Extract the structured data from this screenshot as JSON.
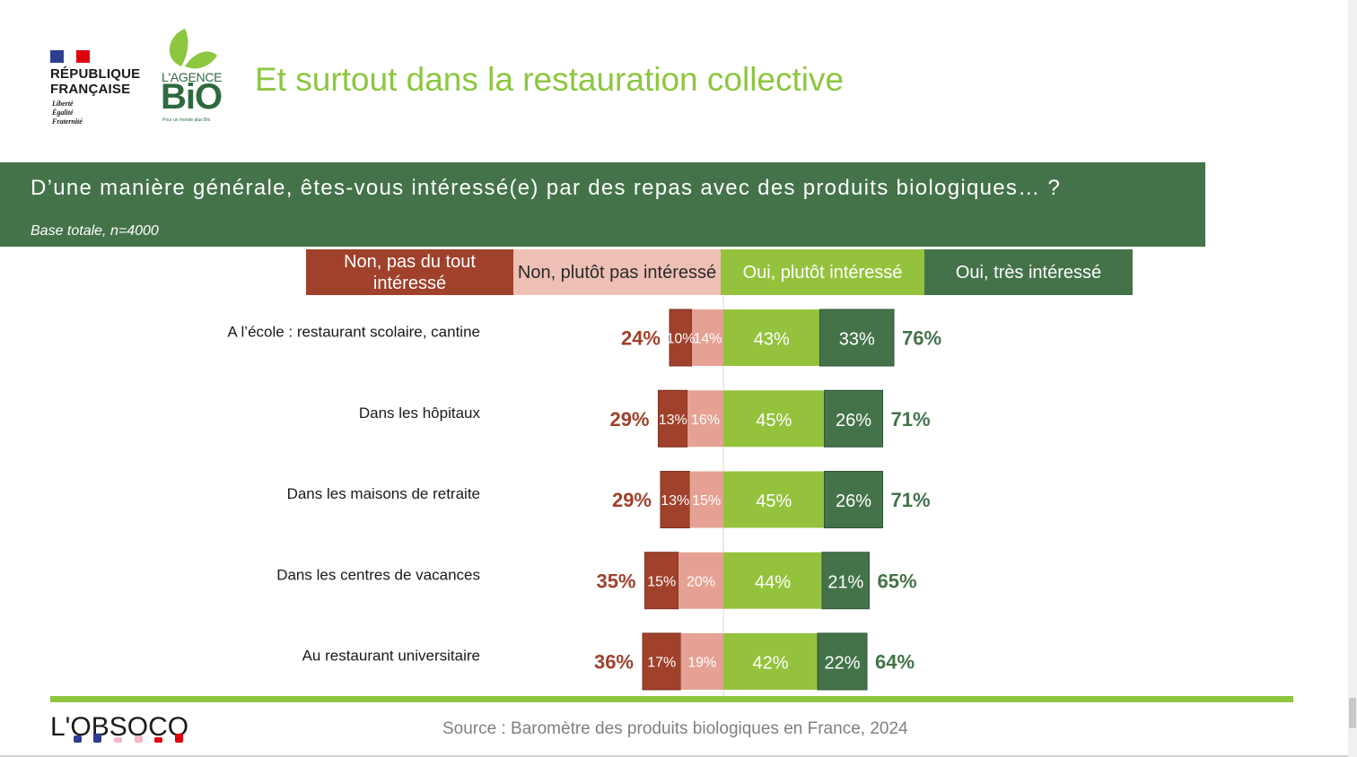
{
  "header": {
    "logo_rf": {
      "line1": "RÉPUBLIQUE",
      "line2": "FRANÇAISE",
      "motto1": "Liberté",
      "motto2": "Égalité",
      "motto3": "Fraternité"
    },
    "logo_bio": {
      "line1": "L'AGENCE",
      "line2": "BiO",
      "tagline": "Pour un monde plus Bio"
    },
    "title": "Et surtout dans la restauration collective"
  },
  "question": {
    "text": "D’une manière générale, êtes-vous intéressé(e) par des repas avec des produits biologiques… ?",
    "base": "Base totale, n=4000"
  },
  "legend": [
    {
      "label": "Non, pas du tout intéressé",
      "color": "#a0412b"
    },
    {
      "label": "Non, plutôt pas intéressé",
      "color": "#eec0b5"
    },
    {
      "label": "Oui, plutôt intéressé",
      "color": "#95c23d"
    },
    {
      "label": "Oui, très intéressé",
      "color": "#44734a"
    }
  ],
  "chart_data": {
    "type": "bar",
    "orientation": "horizontal-diverging-stacked",
    "categories": [
      "A l’école : restaurant scolaire, cantine",
      "Dans les hôpitaux",
      "Dans les maisons de retraite",
      "Dans les centres de vacances",
      "Au restaurant universitaire"
    ],
    "series": [
      {
        "name": "Non, pas du tout intéressé",
        "values": [
          10,
          13,
          13,
          15,
          17
        ],
        "labels": [
          "10%",
          "13%",
          "13%",
          "15%",
          "17%"
        ],
        "color": "#a0412b"
      },
      {
        "name": "Non, plutôt pas intéressé",
        "values": [
          14,
          16,
          15,
          20,
          19
        ],
        "labels": [
          "14%",
          "16%",
          "15%",
          "20%",
          "19%"
        ],
        "color": "#e5a294"
      },
      {
        "name": "Oui, plutôt intéressé",
        "values": [
          43,
          45,
          45,
          44,
          42
        ],
        "labels": [
          "43%",
          "45%",
          "45%",
          "44%",
          "42%"
        ],
        "color": "#95c23d"
      },
      {
        "name": "Oui, très intéressé",
        "values": [
          33,
          26,
          26,
          21,
          22
        ],
        "labels": [
          "33%",
          "26%",
          "26%",
          "21%",
          "22%"
        ],
        "color": "#44734a"
      }
    ],
    "totals_negative": [
      "24%",
      "29%",
      "29%",
      "35%",
      "36%"
    ],
    "totals_positive": [
      "76%",
      "71%",
      "71%",
      "65%",
      "64%"
    ],
    "colors": {
      "negative_total": "#a0412b",
      "positive_total": "#44734a"
    }
  },
  "footer": {
    "logo_obsoco": "L'OBSOCO",
    "source": "Source : Baromètre des produits biologiques en France, 2024"
  }
}
